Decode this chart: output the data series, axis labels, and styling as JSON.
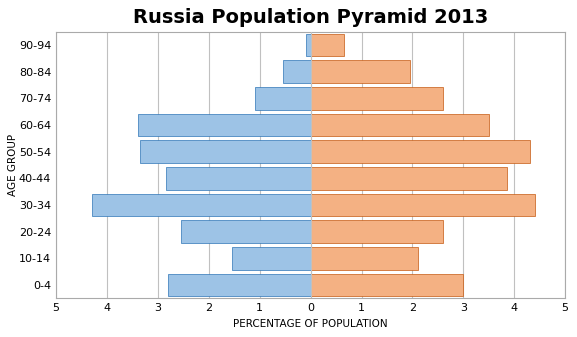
{
  "title": "Russia Population Pyramid 2013",
  "xlabel": "PERCENTAGE OF POPULATION",
  "ylabel": "AGE GROUP",
  "age_groups": [
    "0-4",
    "10-14",
    "20-24",
    "30-34",
    "40-44",
    "50-54",
    "60-64",
    "70-74",
    "80-84",
    "90-94"
  ],
  "male": [
    2.8,
    1.55,
    2.55,
    4.3,
    2.85,
    3.35,
    3.4,
    1.1,
    0.55,
    0.1
  ],
  "female": [
    3.0,
    2.1,
    2.6,
    4.4,
    3.85,
    4.3,
    3.5,
    2.6,
    1.95,
    0.65
  ],
  "male_color": "#9DC3E6",
  "female_color": "#F4B183",
  "male_edge_color": "#2E75B6",
  "female_edge_color": "#C55A11",
  "xlim": 5,
  "xtick_labels": [
    "5",
    "4",
    "3",
    "2",
    "1",
    "0",
    "1",
    "2",
    "3",
    "4",
    "5"
  ],
  "background_color": "#FFFFFF",
  "plot_bg_color": "#FFFFFF",
  "grid_color": "#C0C0C0",
  "title_fontsize": 14,
  "axis_label_fontsize": 7.5
}
